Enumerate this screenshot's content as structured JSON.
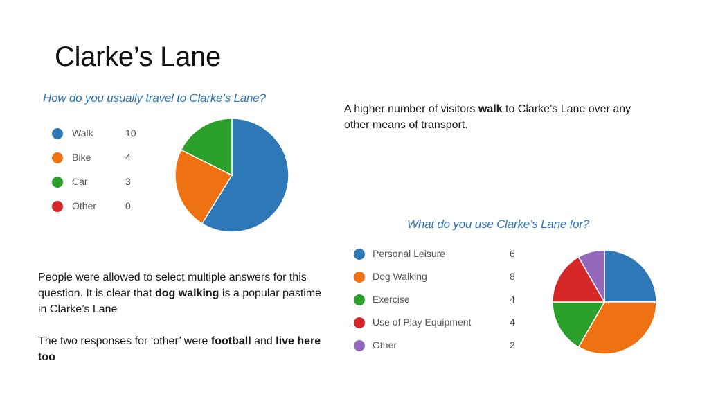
{
  "slide": {
    "title": "Clarke’s Lane"
  },
  "text": {
    "walk_pre": "A higher number of visitors ",
    "walk_bold": "walk",
    "walk_post": " to Clarke’s Lane over any other means of transport.",
    "multi_pre": "People were allowed to select multiple answers for this question.  It is clear that ",
    "multi_bold": "dog walking",
    "multi_post": " is a popular pastime in Clarke’s Lane",
    "other_pre": "The two responses for ‘other’ were ",
    "other_bold1": "football",
    "other_mid": " and ",
    "other_bold2": "live here too"
  },
  "chart_data": [
    {
      "type": "pie",
      "title": "How do you usually travel to Clarke’s Lane?",
      "categories": [
        "Walk",
        "Bike",
        "Car",
        "Other"
      ],
      "values": [
        10,
        4,
        3,
        0
      ],
      "colors": [
        "#2e78b7",
        "#ef7212",
        "#2aa02b",
        "#d62728"
      ],
      "legend": "left"
    },
    {
      "type": "pie",
      "title": "What do you use Clarke’s Lane for?",
      "categories": [
        "Personal Leisure",
        "Dog Walking",
        "Exercise",
        "Use of Play Equipment",
        "Other"
      ],
      "values": [
        6,
        8,
        4,
        4,
        2
      ],
      "colors": [
        "#2e78b7",
        "#ef7212",
        "#2aa02b",
        "#d62728",
        "#9467bd"
      ],
      "legend": "left"
    }
  ]
}
